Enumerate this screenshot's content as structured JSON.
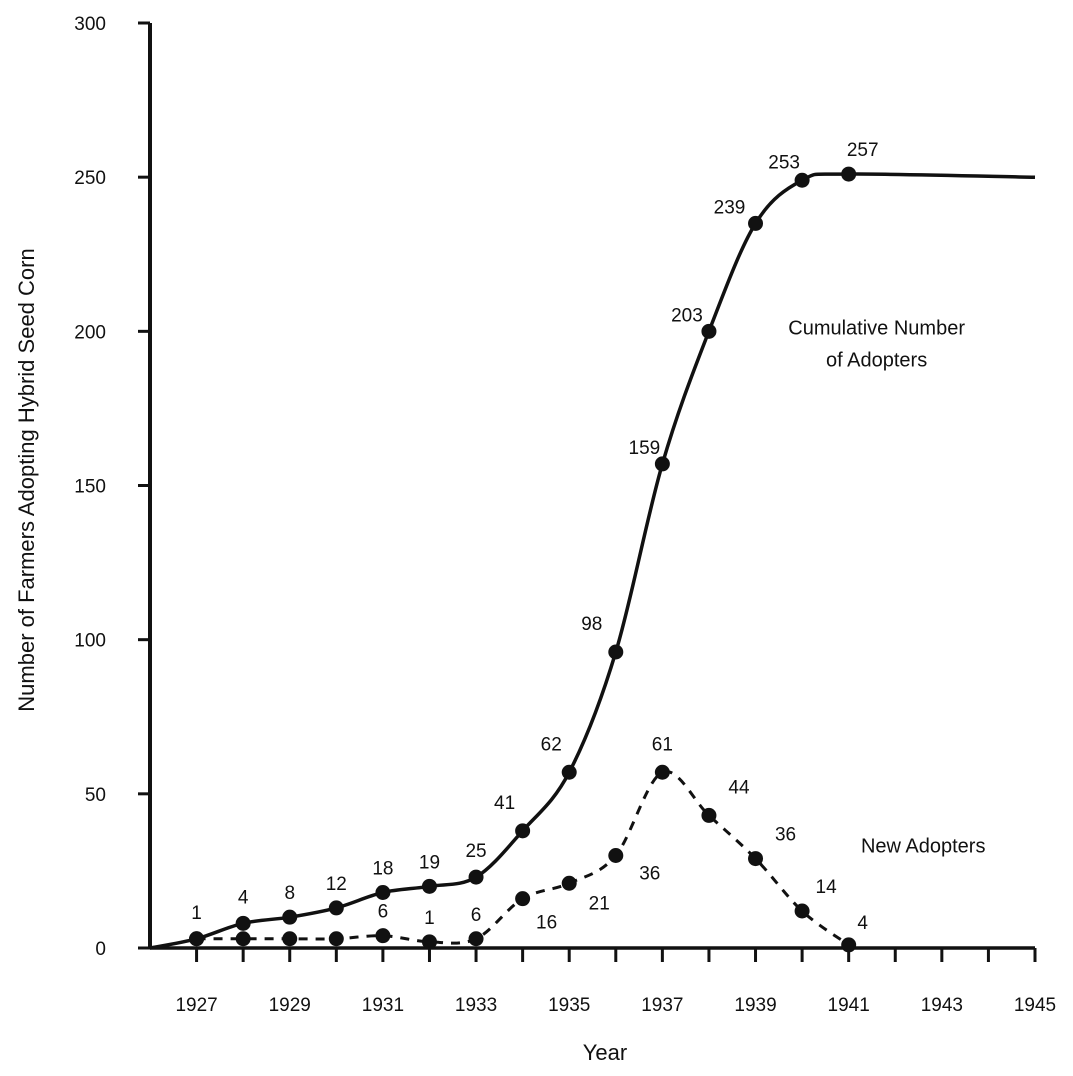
{
  "chart_data": {
    "type": "line",
    "xlabel": "Year",
    "ylabel": "Number of Farmers Adopting Hybrid Seed Corn",
    "xlim": [
      1926,
      1945
    ],
    "ylim": [
      0,
      300
    ],
    "x_ticks": [
      1927,
      1928,
      1929,
      1930,
      1931,
      1932,
      1933,
      1934,
      1935,
      1936,
      1937,
      1938,
      1939,
      1940,
      1941,
      1942,
      1943,
      1944,
      1945
    ],
    "x_tick_labels": [
      "1927",
      "1929",
      "1931",
      "1933",
      "1935",
      "1937",
      "1939",
      "1941",
      "1943",
      "1945"
    ],
    "y_ticks": [
      0,
      50,
      100,
      150,
      200,
      250,
      300
    ],
    "y_tick_labels": [
      "0",
      "50",
      "100",
      "150",
      "200",
      "250",
      "300"
    ],
    "grid": false,
    "series": [
      {
        "name": "Cumulative Number of Adopters",
        "style": "solid",
        "x": [
          1927,
          1928,
          1929,
          1930,
          1931,
          1932,
          1933,
          1934,
          1935,
          1936,
          1937,
          1938,
          1939,
          1940,
          1941
        ],
        "values": [
          1,
          4,
          8,
          12,
          18,
          19,
          25,
          41,
          62,
          98,
          159,
          203,
          239,
          253,
          257
        ],
        "plotted_y": [
          3,
          8,
          10,
          13,
          18,
          20,
          23,
          38,
          57,
          96,
          157,
          200,
          235,
          249,
          251
        ],
        "point_labels": [
          "1",
          "4",
          "8",
          "12",
          "18",
          "19",
          "25",
          "41",
          "62",
          "98",
          "159",
          "203",
          "239",
          "253",
          "257"
        ],
        "curve_start": [
          1926,
          0
        ],
        "curve_end": [
          1945,
          250
        ]
      },
      {
        "name": "New Adopters",
        "style": "dashed",
        "x": [
          1927,
          1928,
          1929,
          1930,
          1931,
          1932,
          1933,
          1934,
          1935,
          1936,
          1937,
          1938,
          1939,
          1940,
          1941
        ],
        "values": [
          1,
          3,
          4,
          4,
          6,
          1,
          6,
          16,
          21,
          36,
          61,
          44,
          36,
          14,
          4
        ],
        "plotted_y": [
          3,
          3,
          3,
          3,
          4,
          2,
          3,
          16,
          21,
          30,
          57,
          43,
          29,
          12,
          1
        ],
        "point_labels": [
          "",
          "",
          "",
          "",
          "6",
          "1",
          "6",
          "16",
          "21",
          "36",
          "61",
          "44",
          "36",
          "14",
          "4"
        ]
      }
    ],
    "annotations": [
      {
        "lines": [
          "Cumulative Number",
          "of Adopters"
        ],
        "x": 1941.6,
        "y": 199,
        "anchor": "middle"
      },
      {
        "lines": [
          "New Adopters"
        ],
        "x": 1942.6,
        "y": 31,
        "anchor": "middle"
      }
    ]
  }
}
